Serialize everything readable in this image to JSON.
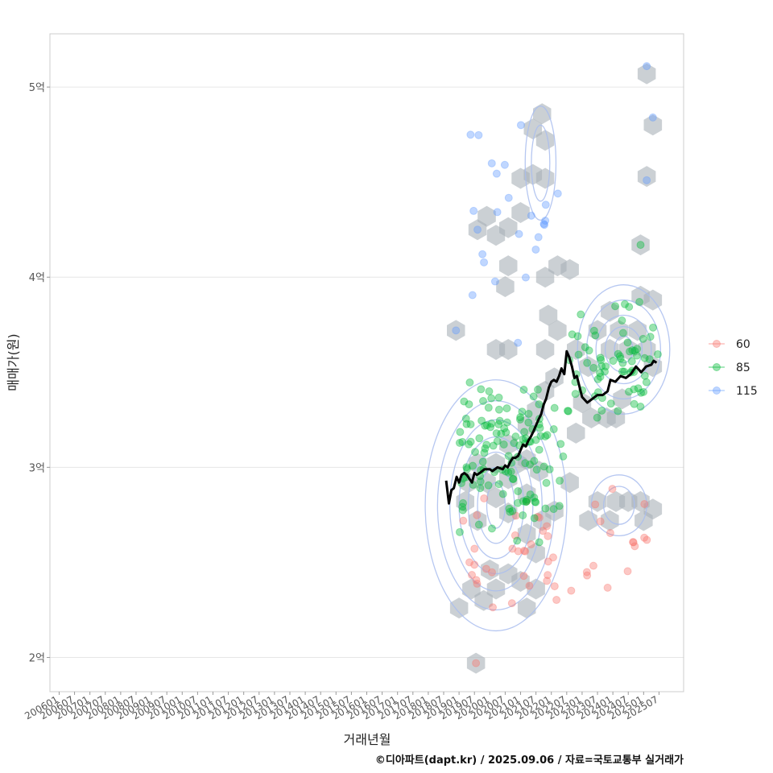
{
  "chart_data": {
    "type": "scatter",
    "title": "",
    "xlabel": "거래년월",
    "ylabel": "매매가(원)",
    "caption": "©디아파트(dapt.kr) / 2025.09.06 / 자료=국토교통부 실거래가",
    "xlim": [
      2005.7,
      2026.3
    ],
    "ylim": [
      1.82,
      5.28
    ],
    "y_ticks": [
      {
        "value": 2,
        "label": "2억"
      },
      {
        "value": 3,
        "label": "3억"
      },
      {
        "value": 4,
        "label": "4억"
      },
      {
        "value": 5,
        "label": "5억"
      }
    ],
    "x_ticks": [
      "200601",
      "200607",
      "200701",
      "200707",
      "200801",
      "200807",
      "200901",
      "200907",
      "201001",
      "201007",
      "201101",
      "201107",
      "201201",
      "201207",
      "201301",
      "201307",
      "201401",
      "201407",
      "201501",
      "201507",
      "201601",
      "201607",
      "201701",
      "201707",
      "201801",
      "201807",
      "201901",
      "201907",
      "202001",
      "202007",
      "202101",
      "202107",
      "202201",
      "202207",
      "202301",
      "202307",
      "202401",
      "202407",
      "202501",
      "202507"
    ],
    "legend": {
      "position": "right",
      "entries": [
        {
          "name": "60",
          "color": "#F8766D"
        },
        {
          "name": "85",
          "color": "#00BA38"
        },
        {
          "name": "115",
          "color": "#619CFF"
        }
      ]
    },
    "hexbin_color": "#a9b0b8",
    "contour_color": "#a9bdee",
    "trend_color": "#000000",
    "trend_line": [
      [
        2018.58,
        2.93
      ],
      [
        2018.67,
        2.81
      ],
      [
        2018.75,
        2.88
      ],
      [
        2018.83,
        2.89
      ],
      [
        2018.92,
        2.95
      ],
      [
        2019.0,
        2.92
      ],
      [
        2019.08,
        2.96
      ],
      [
        2019.17,
        2.97
      ],
      [
        2019.25,
        2.96
      ],
      [
        2019.42,
        2.92
      ],
      [
        2019.5,
        2.97
      ],
      [
        2019.58,
        2.96
      ],
      [
        2019.67,
        2.97
      ],
      [
        2019.75,
        2.98
      ],
      [
        2019.83,
        2.99
      ],
      [
        2020.0,
        2.99
      ],
      [
        2020.08,
        2.98
      ],
      [
        2020.25,
        3.0
      ],
      [
        2020.42,
        2.99
      ],
      [
        2020.5,
        3.01
      ],
      [
        2020.58,
        3.0
      ],
      [
        2020.67,
        3.03
      ],
      [
        2020.75,
        3.05
      ],
      [
        2020.83,
        3.05
      ],
      [
        2020.92,
        3.06
      ],
      [
        2021.0,
        3.09
      ],
      [
        2021.08,
        3.12
      ],
      [
        2021.17,
        3.11
      ],
      [
        2021.25,
        3.14
      ],
      [
        2021.33,
        3.16
      ],
      [
        2021.42,
        3.19
      ],
      [
        2021.5,
        3.22
      ],
      [
        2021.58,
        3.25
      ],
      [
        2021.67,
        3.28
      ],
      [
        2021.75,
        3.33
      ],
      [
        2021.83,
        3.36
      ],
      [
        2021.92,
        3.42
      ],
      [
        2022.0,
        3.45
      ],
      [
        2022.08,
        3.46
      ],
      [
        2022.17,
        3.45
      ],
      [
        2022.25,
        3.48
      ],
      [
        2022.33,
        3.52
      ],
      [
        2022.42,
        3.49
      ],
      [
        2022.5,
        3.61
      ],
      [
        2022.58,
        3.58
      ],
      [
        2022.67,
        3.53
      ],
      [
        2022.75,
        3.47
      ],
      [
        2022.83,
        3.48
      ],
      [
        2022.92,
        3.42
      ],
      [
        2023.0,
        3.37
      ],
      [
        2023.17,
        3.34
      ],
      [
        2023.33,
        3.36
      ],
      [
        2023.5,
        3.38
      ],
      [
        2023.67,
        3.38
      ],
      [
        2023.83,
        3.4
      ],
      [
        2023.92,
        3.46
      ],
      [
        2024.08,
        3.45
      ],
      [
        2024.25,
        3.48
      ],
      [
        2024.42,
        3.47
      ],
      [
        2024.58,
        3.49
      ],
      [
        2024.75,
        3.53
      ],
      [
        2024.92,
        3.5
      ],
      [
        2025.08,
        3.53
      ],
      [
        2025.25,
        3.54
      ],
      [
        2025.33,
        3.56
      ],
      [
        2025.42,
        3.55
      ]
    ],
    "clusters": [
      {
        "series": "60",
        "n": 50,
        "x_range": [
          2019.0,
          2025.5
        ],
        "y_range": [
          2.22,
          2.95
        ],
        "seed": 7
      },
      {
        "series": "85",
        "n": 130,
        "x_range": [
          2019.0,
          2022.4
        ],
        "y_range": [
          2.6,
          3.5
        ],
        "seed": 11
      },
      {
        "series": "85",
        "n": 70,
        "x_range": [
          2022.5,
          2025.5
        ],
        "y_range": [
          3.2,
          3.9
        ],
        "seed": 23
      },
      {
        "series": "115",
        "n": 24,
        "x_range": [
          2019.3,
          2022.3
        ],
        "y_range": [
          3.6,
          4.9
        ],
        "seed": 31
      }
    ],
    "extra_points": [
      {
        "series": "60",
        "x": 2019.55,
        "y": 1.97
      },
      {
        "series": "115",
        "x": 2025.1,
        "y": 5.11
      },
      {
        "series": "115",
        "x": 2025.3,
        "y": 4.84
      },
      {
        "series": "115",
        "x": 2025.1,
        "y": 4.51
      },
      {
        "series": "115",
        "x": 2019.6,
        "y": 4.25
      },
      {
        "series": "115",
        "x": 2018.9,
        "y": 3.72
      },
      {
        "series": "85",
        "x": 2024.9,
        "y": 4.17
      }
    ],
    "hexbins": [
      [
        2019.55,
        1.97
      ],
      [
        2019.0,
        2.26
      ],
      [
        2019.4,
        2.36
      ],
      [
        2019.8,
        2.3
      ],
      [
        2020.2,
        2.36
      ],
      [
        2020.0,
        2.46
      ],
      [
        2020.6,
        2.44
      ],
      [
        2021.0,
        2.4
      ],
      [
        2021.2,
        2.26
      ],
      [
        2021.5,
        2.36
      ],
      [
        2021.5,
        2.55
      ],
      [
        2021.2,
        2.65
      ],
      [
        2021.7,
        2.72
      ],
      [
        2022.1,
        2.77
      ],
      [
        2022.6,
        2.92
      ],
      [
        2023.2,
        2.72
      ],
      [
        2023.5,
        2.82
      ],
      [
        2024.1,
        2.82
      ],
      [
        2024.5,
        2.82
      ],
      [
        2024.9,
        2.82
      ],
      [
        2025.3,
        2.78
      ],
      [
        2025.0,
        2.72
      ],
      [
        2023.9,
        2.72
      ],
      [
        2019.2,
        2.82
      ],
      [
        2019.6,
        2.72
      ],
      [
        2019.3,
        2.92
      ],
      [
        2019.6,
        3.02
      ],
      [
        2019.9,
        2.92
      ],
      [
        2020.2,
        2.84
      ],
      [
        2020.6,
        2.76
      ],
      [
        2020.2,
        3.02
      ],
      [
        2020.6,
        3.12
      ],
      [
        2020.6,
        2.94
      ],
      [
        2020.9,
        3.02
      ],
      [
        2021.2,
        3.04
      ],
      [
        2021.2,
        3.22
      ],
      [
        2021.5,
        3.3
      ],
      [
        2021.8,
        3.4
      ],
      [
        2022.1,
        3.47
      ],
      [
        2021.8,
        3.62
      ],
      [
        2021.9,
        3.8
      ],
      [
        2022.2,
        3.72
      ],
      [
        2021.2,
        2.86
      ],
      [
        2021.6,
        2.98
      ],
      [
        2022.8,
        3.62
      ],
      [
        2023.2,
        3.53
      ],
      [
        2023.5,
        3.72
      ],
      [
        2023.9,
        3.62
      ],
      [
        2024.2,
        3.72
      ],
      [
        2024.5,
        3.62
      ],
      [
        2024.8,
        3.72
      ],
      [
        2025.1,
        3.62
      ],
      [
        2025.3,
        3.53
      ],
      [
        2023.9,
        3.82
      ],
      [
        2024.9,
        3.9
      ],
      [
        2025.3,
        3.88
      ],
      [
        2023.0,
        3.34
      ],
      [
        2023.3,
        3.26
      ],
      [
        2022.8,
        3.18
      ],
      [
        2023.8,
        3.26
      ],
      [
        2024.3,
        3.36
      ],
      [
        2024.1,
        3.26
      ],
      [
        2021.8,
        4.0
      ],
      [
        2022.2,
        4.06
      ],
      [
        2022.6,
        4.04
      ],
      [
        2020.5,
        3.95
      ],
      [
        2020.6,
        4.06
      ],
      [
        2020.2,
        3.62
      ],
      [
        2020.6,
        3.62
      ],
      [
        2018.9,
        3.72
      ],
      [
        2019.6,
        4.25
      ],
      [
        2019.9,
        4.32
      ],
      [
        2020.2,
        4.22
      ],
      [
        2020.6,
        4.26
      ],
      [
        2021.0,
        4.34
      ],
      [
        2021.0,
        4.52
      ],
      [
        2021.4,
        4.54
      ],
      [
        2021.8,
        4.52
      ],
      [
        2021.4,
        4.78
      ],
      [
        2021.7,
        4.86
      ],
      [
        2021.8,
        4.72
      ],
      [
        2025.1,
        5.07
      ],
      [
        2025.3,
        4.8
      ],
      [
        2025.1,
        4.53
      ],
      [
        2024.9,
        4.17
      ]
    ],
    "contours": [
      {
        "cx": 2020.2,
        "cy": 2.8,
        "rx": [
          0.3,
          0.6,
          0.9,
          1.2,
          1.5,
          1.9,
          2.3
        ],
        "ry": [
          0.12,
          0.2,
          0.28,
          0.36,
          0.45,
          0.55,
          0.66
        ]
      },
      {
        "cx": 2024.35,
        "cy": 3.62,
        "rx": [
          0.3,
          0.6,
          0.9,
          1.2,
          1.5
        ],
        "ry": [
          0.07,
          0.12,
          0.18,
          0.26,
          0.34
        ]
      },
      {
        "cx": 2021.65,
        "cy": 4.6,
        "rx": [
          0.3,
          0.5
        ],
        "ry": [
          0.2,
          0.3
        ]
      },
      {
        "cx": 2024.2,
        "cy": 2.8,
        "rx": [
          0.5,
          0.9
        ],
        "ry": [
          0.1,
          0.16
        ]
      }
    ]
  }
}
